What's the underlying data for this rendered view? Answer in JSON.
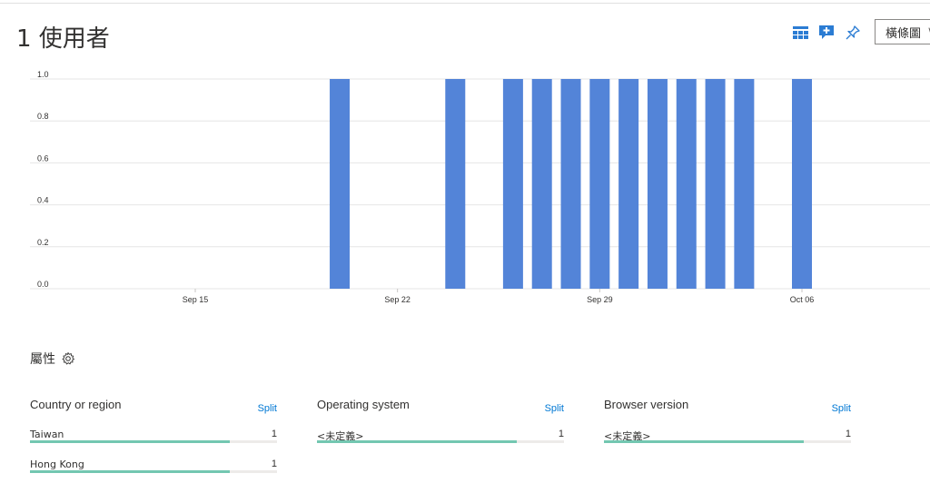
{
  "header": {
    "title": "1 使用者",
    "chart_type_selector": "橫條圖",
    "icons": [
      "grid-icon",
      "add-comment-icon",
      "pin-icon"
    ]
  },
  "chart_data": {
    "type": "bar",
    "x_ticks": [
      "Sep 15",
      "Sep 22",
      "Sep 29",
      "Oct 06"
    ],
    "y_ticks": [
      "1.0",
      "0.8",
      "0.6",
      "0.4",
      "0.2",
      "0.0"
    ],
    "ylim": [
      0,
      1
    ],
    "x": [
      "Sep 20",
      "Sep 24",
      "Sep 26",
      "Sep 27",
      "Sep 28",
      "Sep 29",
      "Sep 30",
      "Oct 01",
      "Oct 02",
      "Oct 03",
      "Oct 04",
      "Oct 06"
    ],
    "values": [
      1,
      1,
      1,
      1,
      1,
      1,
      1,
      1,
      1,
      1,
      1,
      1
    ],
    "bar_color": "#5384d8",
    "grid": true
  },
  "properties": {
    "title": "屬性",
    "columns": [
      {
        "header": "Country or region",
        "split_label": "Split",
        "rows": [
          {
            "label": "Taiwan",
            "value": "1",
            "fill": 0.81
          },
          {
            "label": "Hong Kong",
            "value": "1",
            "fill": 0.81
          }
        ]
      },
      {
        "header": "Operating system",
        "split_label": "Split",
        "rows": [
          {
            "label": "<未定義>",
            "value": "1",
            "fill": 0.81
          }
        ]
      },
      {
        "header": "Browser version",
        "split_label": "Split",
        "rows": [
          {
            "label": "<未定義>",
            "value": "1",
            "fill": 0.81
          }
        ]
      }
    ]
  },
  "colors": {
    "accent": "#0078d4",
    "bar": "#5384d8",
    "property_bar": "#73c7b1"
  }
}
